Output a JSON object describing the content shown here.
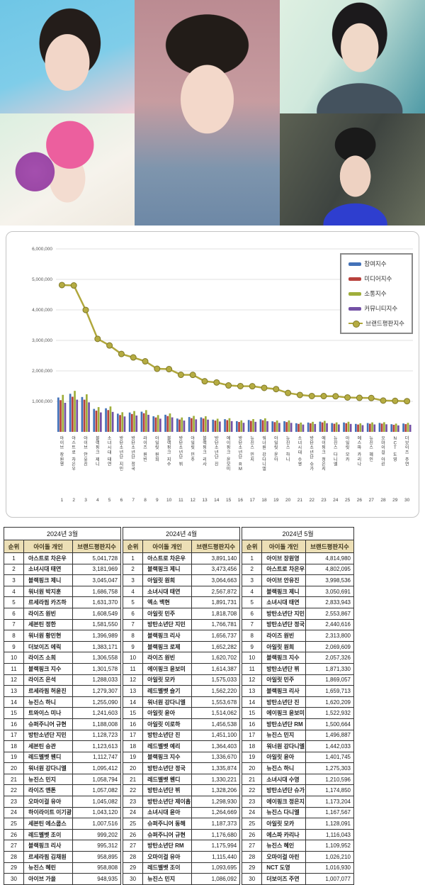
{
  "photos": [
    {
      "id": "top-left",
      "desc": "idol portrait, dark hair, blue studio background"
    },
    {
      "id": "bottom-left",
      "desc": "idol with pink beanie holding purple rose, mint background"
    },
    {
      "id": "center",
      "desc": "idol with black beret and denim jacket, mauve background"
    },
    {
      "id": "top-right",
      "desc": "male idol in grey coat, teal floral background"
    },
    {
      "id": "bottom-right",
      "desc": "idol in blue halter dress at event, dark crowd background"
    }
  ],
  "chart_data": {
    "type": "combo_bar_line",
    "title": "",
    "categories": [
      "아이브 장원영",
      "아스트로 차은우",
      "아이브 안유진",
      "블랙핑크 제니",
      "소녀시대 태연",
      "방탄소년단 지민",
      "방탄소년단 정국",
      "라이즈 원빈",
      "아일릿 원희",
      "블랙핑크 지수",
      "방탄소년단 뷔",
      "아일릿 민주",
      "블랙핑크 리사",
      "방탄소년단 진",
      "에이핑크 윤보미",
      "방탄소년단 RM",
      "뉴진스 민지",
      "워너원 강다니엘",
      "아일릿 윤아",
      "뉴진스 하니",
      "소녀시대 수영",
      "방탄소년단 슈가",
      "에이핑크 정은지",
      "뉴진스 다니엘",
      "아일릿 모카",
      "에스파 카리나",
      "뉴진스 혜인",
      "오마이걸 아린",
      "NCT 도영",
      "더보이즈 주연"
    ],
    "line_series": {
      "name": "브랜드평판지수",
      "values": [
        4814980,
        4802095,
        3998536,
        3050691,
        2833943,
        2553867,
        2440616,
        2313800,
        2069609,
        2057326,
        1871330,
        1869057,
        1659713,
        1620209,
        1522932,
        1500664,
        1496887,
        1442033,
        1401745,
        1275303,
        1210596,
        1174850,
        1173204,
        1167567,
        1128091,
        1116043,
        1109952,
        1026210,
        1016930,
        1007077
      ]
    },
    "bar_series": {
      "names": [
        "참여지수",
        "미디어지수",
        "소통지수",
        "커뮤니티지수"
      ],
      "estimated": true,
      "fractions": [
        0.26,
        0.24,
        0.28,
        0.22
      ]
    },
    "ylim": [
      0,
      6000000
    ],
    "y_ticks": [
      "1,000,000",
      "2,000,000",
      "3,000,000",
      "4,000,000",
      "5,000,000",
      "6,000,000"
    ],
    "grid": true,
    "legend_position": "top-right",
    "colors": {
      "참여지수": "#4472b8",
      "미디어지수": "#b8413c",
      "소통지수": "#9fae3a",
      "커뮤니티지수": "#7451a5",
      "브랜드평판지수": "#b0a73c",
      "line_marker": "#b5ac42",
      "line_marker_stroke": "#817a28"
    },
    "legend": [
      "참여지수",
      "미디어지수",
      "소통지수",
      "커뮤니티지수",
      "브랜드평판지수"
    ]
  },
  "tables": [
    {
      "title": "2024년 3월",
      "columns": [
        "순위",
        "아이돌 개인",
        "브랜드평판지수"
      ],
      "rows": [
        [
          1,
          "아스트로 차은우",
          "5,041,728"
        ],
        [
          2,
          "소녀시대 태연",
          "3,181,969"
        ],
        [
          3,
          "블랙핑크 제니",
          "3,045,047"
        ],
        [
          4,
          "워너원 박지훈",
          "1,686,758"
        ],
        [
          5,
          "르세라핌 카즈하",
          "1,631,370"
        ],
        [
          6,
          "라이즈 원빈",
          "1,608,549"
        ],
        [
          7,
          "세븐틴 정한",
          "1,581,550"
        ],
        [
          8,
          "워너원 황민현",
          "1,396,989"
        ],
        [
          9,
          "더보이즈 에릭",
          "1,383,171"
        ],
        [
          10,
          "라이즈 소희",
          "1,306,558"
        ],
        [
          11,
          "블랙핑크 지수",
          "1,301,578"
        ],
        [
          12,
          "라이즈 은석",
          "1,288,033"
        ],
        [
          13,
          "르세라핌 허윤진",
          "1,279,307"
        ],
        [
          14,
          "뉴진스 하니",
          "1,255,090"
        ],
        [
          15,
          "트와이스 미나",
          "1,241,603"
        ],
        [
          16,
          "슈퍼주니어 규현",
          "1,188,008"
        ],
        [
          17,
          "방탄소년단 지민",
          "1,128,723"
        ],
        [
          18,
          "세븐틴 승관",
          "1,123,613"
        ],
        [
          19,
          "레드벨벳 웬디",
          "1,112,747"
        ],
        [
          20,
          "워너원 강다니엘",
          "1,095,412"
        ],
        [
          21,
          "뉴진스 민지",
          "1,058,794"
        ],
        [
          22,
          "라이즈 앤톤",
          "1,057,082"
        ],
        [
          23,
          "오마이걸 유아",
          "1,045,082"
        ],
        [
          24,
          "하이라이트 이기광",
          "1,043,120"
        ],
        [
          25,
          "세븐틴 에스쿱스",
          "1,007,516"
        ],
        [
          26,
          "레드벨벳 조이",
          "999,202"
        ],
        [
          27,
          "블랙핑크 리사",
          "995,312"
        ],
        [
          28,
          "르세라핌 김채원",
          "958,895"
        ],
        [
          29,
          "뉴진스 혜린",
          "958,808"
        ],
        [
          30,
          "아이브 가을",
          "948,935"
        ]
      ]
    },
    {
      "title": "2024년 4월",
      "columns": [
        "순위",
        "아이돌 개인",
        "브랜드평판지수"
      ],
      "rows": [
        [
          1,
          "아스트로 차은우",
          "3,891,140"
        ],
        [
          2,
          "블랙핑크 제니",
          "3,473,456"
        ],
        [
          3,
          "아일릿 원희",
          "3,064,663"
        ],
        [
          4,
          "소녀시대 태연",
          "2,567,872"
        ],
        [
          5,
          "엑소 백현",
          "1,891,731"
        ],
        [
          6,
          "아일릿 민주",
          "1,818,708"
        ],
        [
          7,
          "방탄소년단 지민",
          "1,766,781"
        ],
        [
          8,
          "블랙핑크 리사",
          "1,656,737"
        ],
        [
          9,
          "블랙핑크 로제",
          "1,652,282"
        ],
        [
          10,
          "라이즈 원빈",
          "1,620,702"
        ],
        [
          11,
          "에이핑크 윤보미",
          "1,614,387"
        ],
        [
          12,
          "아일릿 모카",
          "1,575,033"
        ],
        [
          13,
          "레드벨벳 슬기",
          "1,562,220"
        ],
        [
          14,
          "워너원 강다니엘",
          "1,553,678"
        ],
        [
          15,
          "아일릿 윤아",
          "1,514,062"
        ],
        [
          16,
          "아일릿 이로하",
          "1,456,538"
        ],
        [
          17,
          "방탄소년단 진",
          "1,451,100"
        ],
        [
          18,
          "레드벨벳 예리",
          "1,364,403"
        ],
        [
          19,
          "블랙핑크 지수",
          "1,336,670"
        ],
        [
          20,
          "방탄소년단 정국",
          "1,335,874"
        ],
        [
          21,
          "레드벨벳 웬디",
          "1,330,221"
        ],
        [
          22,
          "방탄소년단 뷔",
          "1,328,206"
        ],
        [
          23,
          "방탄소년단 제이홉",
          "1,298,930"
        ],
        [
          24,
          "소녀시대 윤아",
          "1,264,669"
        ],
        [
          25,
          "슈퍼주니어 동해",
          "1,187,373"
        ],
        [
          26,
          "슈퍼주니어 규현",
          "1,176,680"
        ],
        [
          27,
          "방탄소년단 RM",
          "1,175,994"
        ],
        [
          28,
          "오마이걸 유아",
          "1,115,440"
        ],
        [
          29,
          "레드벨벳 조이",
          "1,093,695"
        ],
        [
          30,
          "뉴진스 민지",
          "1,086,092"
        ]
      ]
    },
    {
      "title": "2024년 5월",
      "columns": [
        "순위",
        "아이돌 개인",
        "브랜드평판지수"
      ],
      "rows": [
        [
          1,
          "아이브 장원영",
          "4,814,980"
        ],
        [
          2,
          "아스트로 차은우",
          "4,802,095"
        ],
        [
          3,
          "아이브 안유진",
          "3,998,536"
        ],
        [
          4,
          "블랙핑크 제니",
          "3,050,691"
        ],
        [
          5,
          "소녀시대 태연",
          "2,833,943"
        ],
        [
          6,
          "방탄소년단 지민",
          "2,553,867"
        ],
        [
          7,
          "방탄소년단 정국",
          "2,440,616"
        ],
        [
          8,
          "라이즈 원빈",
          "2,313,800"
        ],
        [
          9,
          "아일릿 원희",
          "2,069,609"
        ],
        [
          10,
          "블랙핑크 지수",
          "2,057,326"
        ],
        [
          11,
          "방탄소년단 뷔",
          "1,871,330"
        ],
        [
          12,
          "아일릿 민주",
          "1,869,057"
        ],
        [
          13,
          "블랙핑크 리사",
          "1,659,713"
        ],
        [
          14,
          "방탄소년단 진",
          "1,620,209"
        ],
        [
          15,
          "에이핑크 윤보미",
          "1,522,932"
        ],
        [
          16,
          "방탄소년단 RM",
          "1,500,664"
        ],
        [
          17,
          "뉴진스 민지",
          "1,496,887"
        ],
        [
          18,
          "워너원 강다니엘",
          "1,442,033"
        ],
        [
          19,
          "아일릿 윤아",
          "1,401,745"
        ],
        [
          20,
          "뉴진스 하니",
          "1,275,303"
        ],
        [
          21,
          "소녀시대 수영",
          "1,210,596"
        ],
        [
          22,
          "방탄소년단 슈가",
          "1,174,850"
        ],
        [
          23,
          "에이핑크 정은지",
          "1,173,204"
        ],
        [
          24,
          "뉴진스 다니엘",
          "1,167,567"
        ],
        [
          25,
          "아일릿 모카",
          "1,128,091"
        ],
        [
          26,
          "에스파 카리나",
          "1,116,043"
        ],
        [
          27,
          "뉴진스 혜인",
          "1,109,952"
        ],
        [
          28,
          "오마이걸 아린",
          "1,026,210"
        ],
        [
          29,
          "NCT 도영",
          "1,016,930"
        ],
        [
          30,
          "더보이즈 주연",
          "1,007,077"
        ]
      ]
    }
  ]
}
